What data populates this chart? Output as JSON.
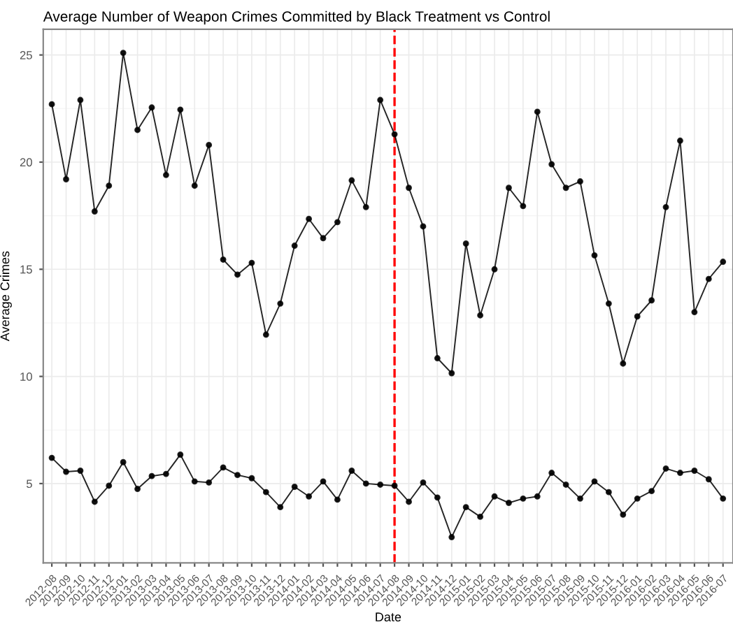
{
  "chart_data": {
    "type": "line",
    "title": "Average Number of Weapon Crimes Committed by Black Treatment vs Control",
    "xlabel": "Date",
    "ylabel": "Average Crimes",
    "categories": [
      "2012-08",
      "2012-09",
      "2012-10",
      "2012-11",
      "2012-12",
      "2013-01",
      "2013-02",
      "2013-03",
      "2013-04",
      "2013-05",
      "2013-06",
      "2013-07",
      "2013-08",
      "2013-09",
      "2013-10",
      "2013-11",
      "2013-12",
      "2014-01",
      "2014-02",
      "2014-03",
      "2014-04",
      "2014-05",
      "2014-06",
      "2014-07",
      "2014-08",
      "2014-09",
      "2014-10",
      "2014-11",
      "2014-12",
      "2015-01",
      "2015-02",
      "2015-03",
      "2015-04",
      "2015-05",
      "2015-06",
      "2015-07",
      "2015-08",
      "2015-09",
      "2015-10",
      "2015-11",
      "2015-12",
      "2016-01",
      "2016-02",
      "2016-03",
      "2016-04",
      "2016-05",
      "2016-06",
      "2016-07"
    ],
    "series": [
      {
        "color": "#000000",
        "values": [
          22.7,
          19.2,
          22.9,
          17.7,
          18.9,
          25.1,
          21.5,
          22.55,
          19.4,
          22.45,
          18.9,
          20.8,
          15.45,
          14.75,
          15.3,
          11.95,
          13.4,
          16.1,
          17.35,
          16.45,
          17.2,
          19.15,
          17.9,
          22.9,
          21.3,
          18.8,
          17.0,
          10.85,
          10.15,
          16.2,
          12.85,
          15.0,
          18.8,
          17.95,
          22.35,
          19.9,
          18.8,
          19.1,
          15.65,
          13.4,
          10.6,
          12.8,
          13.55,
          17.9,
          21.0,
          13.0,
          14.55,
          15.35
        ]
      },
      {
        "color": "#000000",
        "values": [
          6.2,
          5.55,
          5.6,
          4.15,
          4.9,
          6.0,
          4.75,
          5.35,
          5.45,
          6.35,
          5.1,
          5.05,
          5.75,
          5.4,
          5.25,
          4.6,
          3.9,
          4.85,
          4.4,
          5.1,
          4.25,
          5.6,
          5.0,
          4.95,
          4.9,
          4.15,
          5.05,
          4.35,
          2.5,
          3.9,
          3.45,
          4.4,
          4.1,
          4.3,
          4.4,
          5.5,
          4.95,
          4.3,
          5.1,
          4.6,
          3.55,
          4.3,
          4.65,
          5.7,
          5.5,
          5.6,
          5.2,
          4.3
        ]
      }
    ],
    "ylim": [
      1.3,
      26.2
    ],
    "yticks": [
      5,
      10,
      15,
      20,
      25
    ],
    "ref_lines": [
      {
        "axis": "x",
        "value": "2014-08",
        "color": "#ff0000",
        "line_style": "dashed"
      }
    ],
    "grid": true,
    "marker": "circle",
    "line_style": "solid",
    "legend": false
  }
}
